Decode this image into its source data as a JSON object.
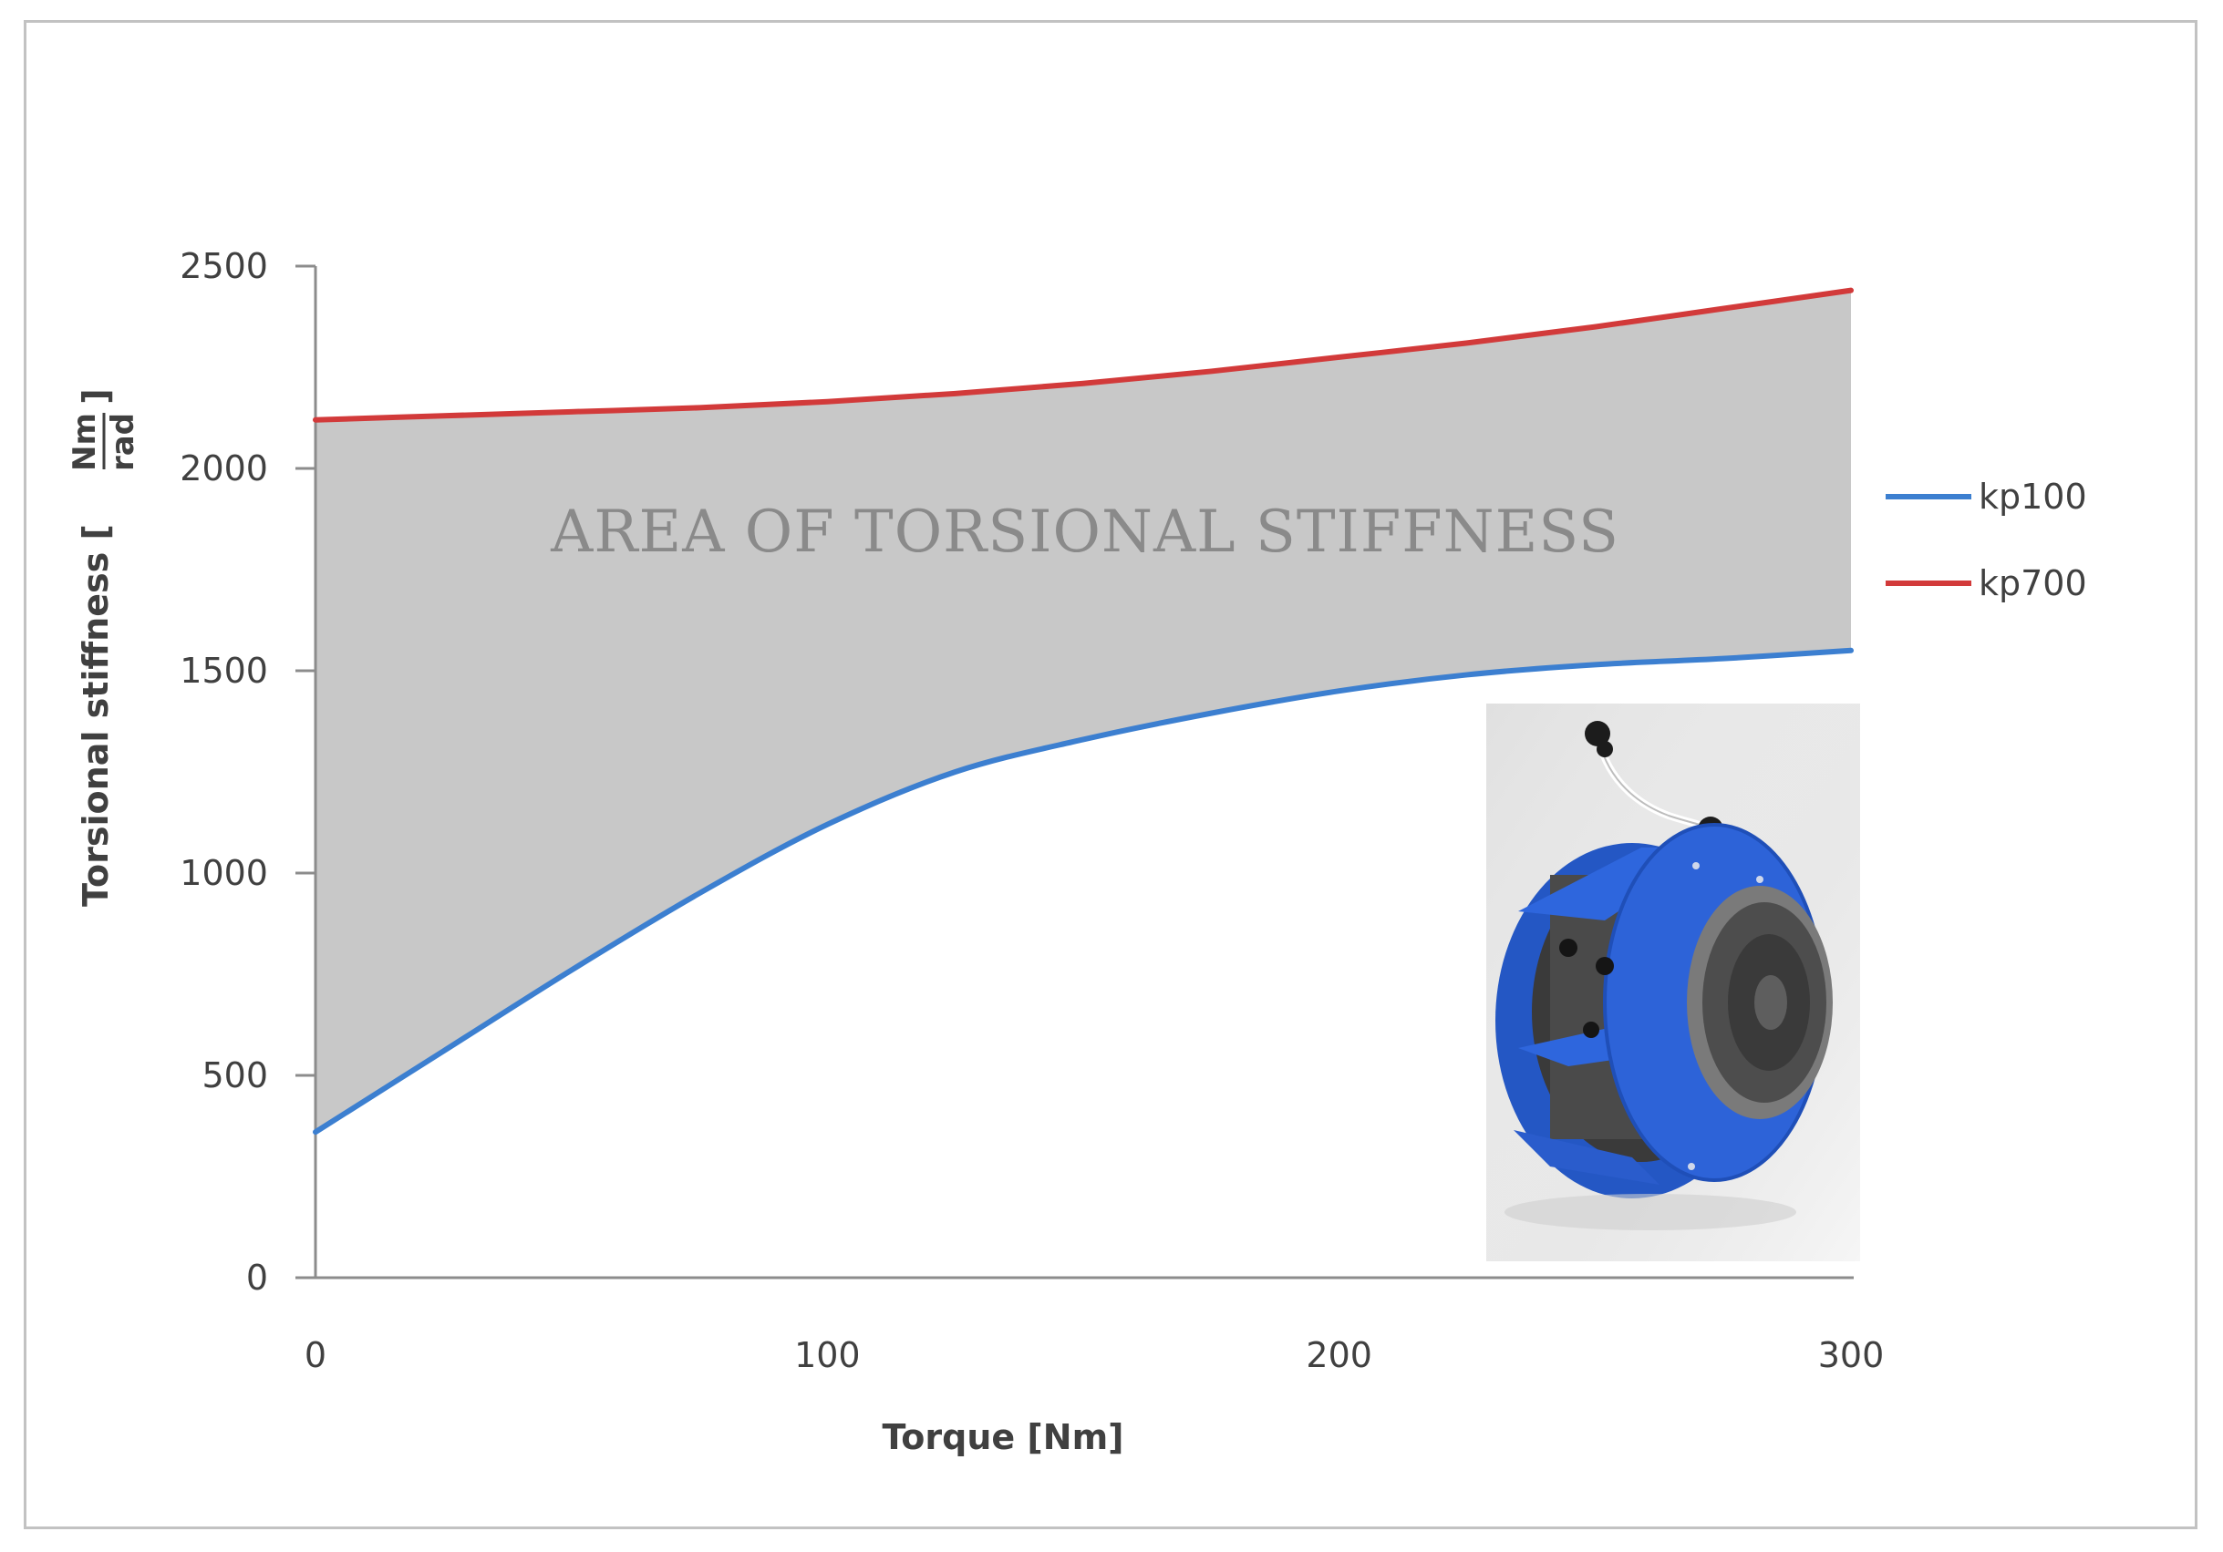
{
  "chart_data": {
    "type": "area",
    "title": "",
    "xlabel": "Torque [Nm]",
    "ylabel": "Torsional stiffness [",
    "ylabel_unit_numerator": "Nm",
    "ylabel_unit_denominator": "rad",
    "ylabel_bracket_close": "]",
    "xlim": [
      0,
      300
    ],
    "ylim": [
      0,
      2500
    ],
    "x_ticks": [
      0,
      100,
      200,
      300
    ],
    "y_ticks": [
      0,
      500,
      1000,
      1500,
      2000,
      2500
    ],
    "x_tick_labels": [
      "0",
      "100",
      "200",
      "300"
    ],
    "y_tick_labels": [
      "0",
      "500",
      "1000",
      "1500",
      "2000",
      "2500"
    ],
    "grid": false,
    "legend_position": "right",
    "fill_between": {
      "lower": "kp100",
      "upper": "kp700",
      "color": "#c8c8c8"
    },
    "annotation": "AREA OF TORSIONAL STIFFNESS",
    "series": [
      {
        "name": "kp100",
        "color": "#3c7fd0",
        "x": [
          0,
          25,
          50,
          75,
          100,
          125,
          150,
          175,
          200,
          225,
          250,
          275,
          300
        ],
        "y": [
          360,
          560,
          760,
          950,
          1120,
          1250,
          1330,
          1395,
          1450,
          1490,
          1515,
          1530,
          1550
        ]
      },
      {
        "name": "kp700",
        "color": "#d23a3a",
        "x": [
          0,
          25,
          50,
          75,
          100,
          125,
          150,
          175,
          200,
          225,
          250,
          275,
          300
        ],
        "y": [
          2120,
          2130,
          2140,
          2150,
          2165,
          2185,
          2210,
          2240,
          2275,
          2310,
          2350,
          2395,
          2440
        ]
      }
    ]
  },
  "inset_photo": {
    "description_icon": "rotary-actuator-photo",
    "colors": {
      "body": "#2d63d8",
      "dark": "#2a2a2a",
      "metal": "#6a6a6a",
      "background": "#e6e6e6"
    }
  }
}
